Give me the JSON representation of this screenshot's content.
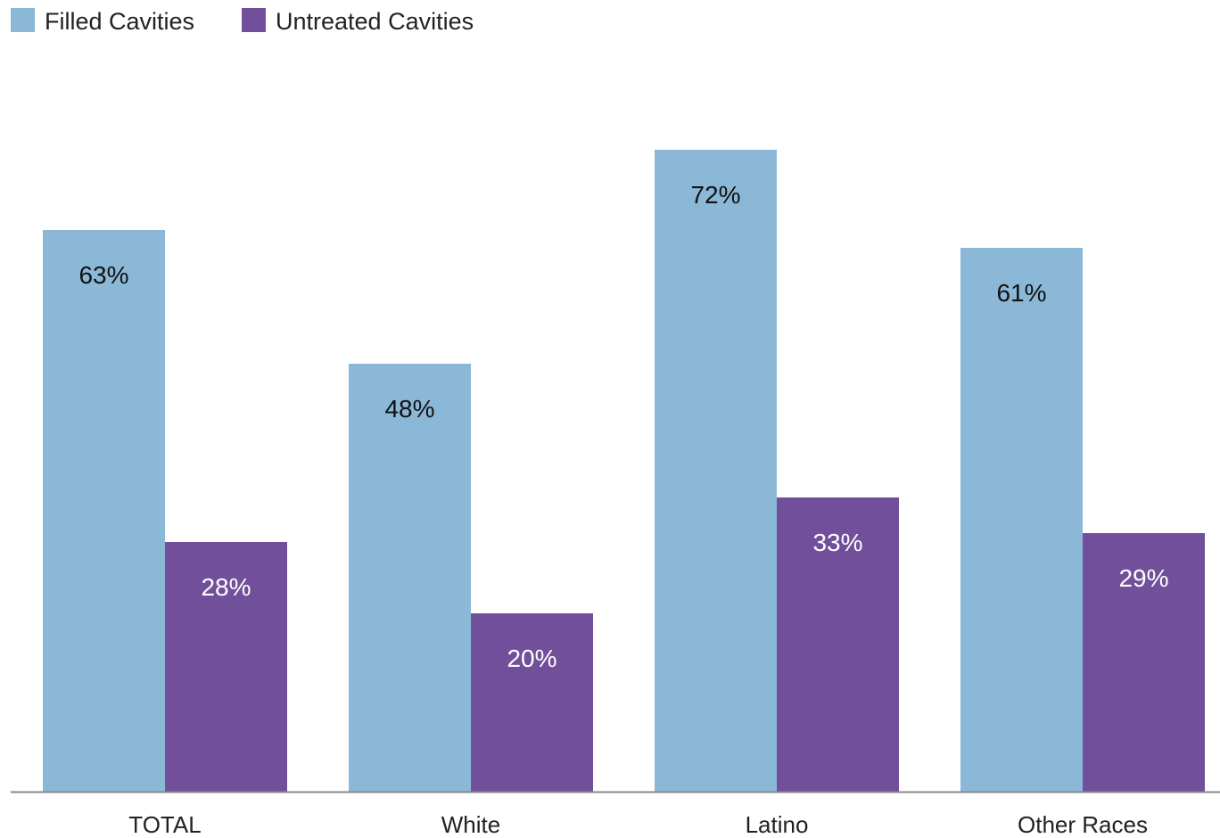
{
  "chart_data": {
    "type": "bar",
    "categories": [
      "TOTAL",
      "White",
      "Latino",
      "Other Races"
    ],
    "series": [
      {
        "name": "Filled Cavities",
        "values": [
          63,
          48,
          72,
          61
        ],
        "labels": [
          "63%",
          "48%",
          "72%",
          "61%"
        ],
        "color": "#8cb8d8",
        "label_color": "#111111"
      },
      {
        "name": "Untreated Cavities",
        "values": [
          28,
          20,
          33,
          29
        ],
        "labels": [
          "28%",
          "20%",
          "33%",
          "29%"
        ],
        "color": "#714f9b",
        "label_color": "#ffffff"
      }
    ],
    "ylim": [
      0,
      100
    ],
    "grid": false,
    "legend_position": "top-left",
    "axis_color": "#888888"
  }
}
